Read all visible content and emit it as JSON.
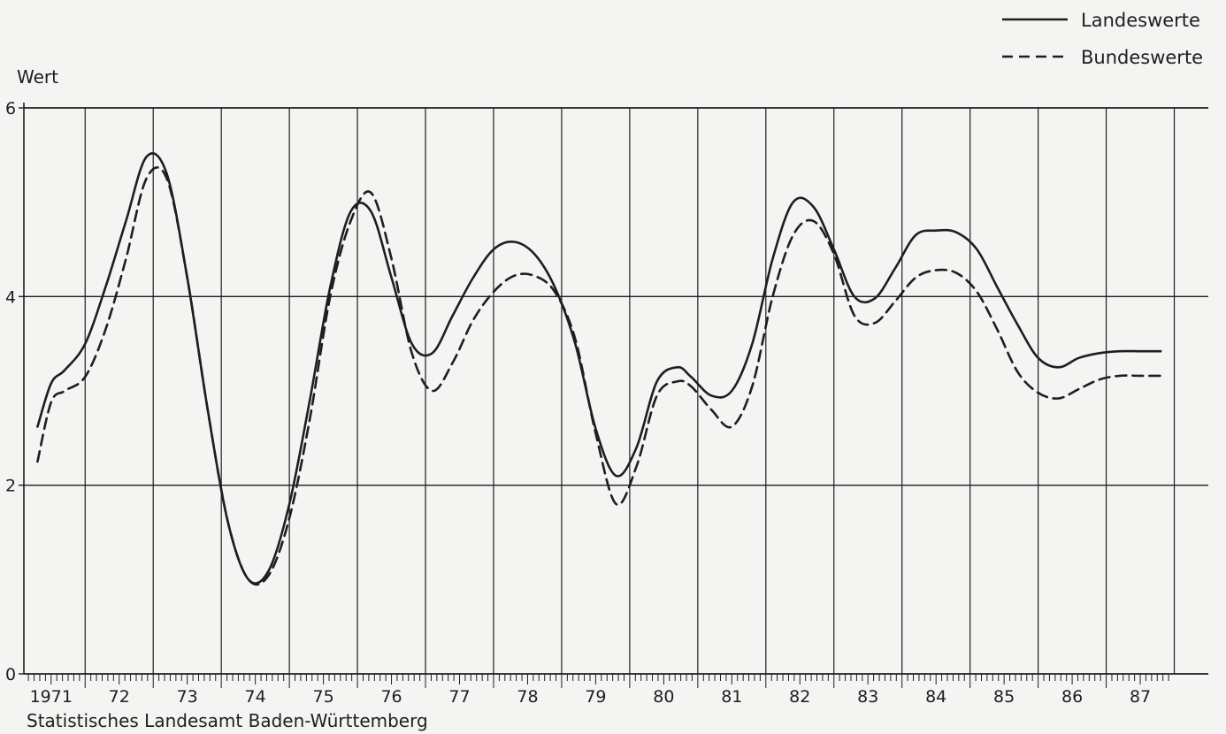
{
  "chart_data": {
    "type": "line",
    "ylabel": "Wert",
    "ylim": [
      0,
      6
    ],
    "y_ticks": [
      "0",
      "2",
      "4",
      "6"
    ],
    "x_ticks": [
      "1971",
      "72",
      "73",
      "74",
      "75",
      "76",
      "77",
      "78",
      "79",
      "80",
      "81",
      "82",
      "83",
      "84",
      "85",
      "86",
      "87"
    ],
    "xlim": [
      1970.6,
      1988.0
    ],
    "grid": true,
    "legend_position": "top-right",
    "source": "Statistisches Landesamt Baden-Württemberg",
    "series": [
      {
        "name": "Landeswerte",
        "style": "solid",
        "x": [
          1970.8,
          1971.0,
          1971.2,
          1971.5,
          1971.8,
          1972.1,
          1972.4,
          1972.7,
          1973.0,
          1973.3,
          1973.6,
          1973.9,
          1974.2,
          1974.5,
          1974.8,
          1975.1,
          1975.4,
          1975.7,
          1976.0,
          1976.3,
          1976.6,
          1976.9,
          1977.2,
          1977.5,
          1977.8,
          1978.1,
          1978.4,
          1978.7,
          1979.0,
          1979.3,
          1979.6,
          1979.9,
          1980.2,
          1980.4,
          1980.7,
          1981.0,
          1981.3,
          1981.6,
          1981.9,
          1982.2,
          1982.5,
          1982.8,
          1983.1,
          1983.4,
          1983.7,
          1984.0,
          1984.3,
          1984.6,
          1984.9,
          1985.2,
          1985.5,
          1985.8,
          1986.1,
          1986.4,
          1986.7,
          1987.0,
          1987.3
        ],
        "y": [
          2.62,
          3.08,
          3.22,
          3.5,
          4.1,
          4.8,
          5.48,
          5.3,
          4.2,
          2.8,
          1.6,
          1.0,
          1.1,
          1.8,
          2.9,
          4.1,
          4.9,
          4.9,
          4.2,
          3.5,
          3.4,
          3.8,
          4.2,
          4.5,
          4.58,
          4.45,
          4.1,
          3.5,
          2.6,
          2.1,
          2.4,
          3.1,
          3.25,
          3.15,
          2.95,
          3.0,
          3.5,
          4.4,
          5.0,
          4.95,
          4.5,
          4.0,
          3.98,
          4.3,
          4.65,
          4.7,
          4.68,
          4.5,
          4.1,
          3.7,
          3.35,
          3.25,
          3.35,
          3.4,
          3.42,
          3.42,
          3.42
        ]
      },
      {
        "name": "Bundeswerte",
        "style": "dashed",
        "x": [
          1970.8,
          1971.0,
          1971.2,
          1971.5,
          1971.8,
          1972.1,
          1972.4,
          1972.7,
          1973.0,
          1973.3,
          1973.6,
          1973.9,
          1974.2,
          1974.5,
          1974.8,
          1975.1,
          1975.4,
          1975.7,
          1976.0,
          1976.3,
          1976.6,
          1976.9,
          1977.2,
          1977.5,
          1977.8,
          1978.1,
          1978.4,
          1978.7,
          1979.0,
          1979.3,
          1979.6,
          1979.9,
          1980.2,
          1980.4,
          1980.7,
          1981.0,
          1981.3,
          1981.6,
          1981.9,
          1982.2,
          1982.5,
          1982.8,
          1983.1,
          1983.4,
          1983.7,
          1984.0,
          1984.3,
          1984.6,
          1984.9,
          1985.2,
          1985.5,
          1985.8,
          1986.1,
          1986.4,
          1986.7,
          1987.0,
          1987.3
        ],
        "y": [
          2.25,
          2.88,
          3.0,
          3.15,
          3.65,
          4.4,
          5.25,
          5.25,
          4.2,
          2.8,
          1.6,
          1.0,
          1.05,
          1.65,
          2.7,
          4.0,
          4.8,
          5.1,
          4.4,
          3.4,
          3.0,
          3.3,
          3.75,
          4.05,
          4.22,
          4.22,
          4.05,
          3.55,
          2.55,
          1.8,
          2.2,
          2.95,
          3.1,
          3.05,
          2.8,
          2.62,
          3.05,
          4.0,
          4.65,
          4.8,
          4.45,
          3.8,
          3.72,
          3.95,
          4.2,
          4.28,
          4.25,
          4.05,
          3.65,
          3.2,
          2.98,
          2.92,
          3.02,
          3.12,
          3.16,
          3.16,
          3.16
        ]
      }
    ]
  }
}
